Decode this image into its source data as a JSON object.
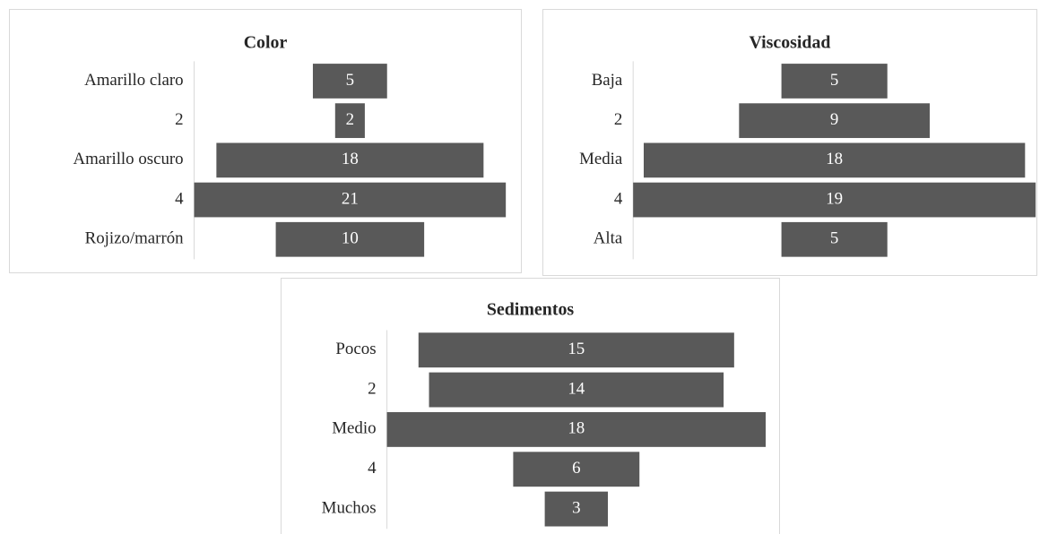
{
  "chart_data": [
    {
      "type": "bar",
      "subtype": "funnel",
      "title": "Color",
      "categories": [
        "Amarillo claro",
        "2",
        "Amarillo oscuro",
        "4",
        "Rojizo/marrón"
      ],
      "values": [
        5,
        2,
        18,
        21,
        10
      ],
      "xlabel": "",
      "ylabel": "",
      "grid": false,
      "bar_color": "#595959",
      "label_color": "#ffffff"
    },
    {
      "type": "bar",
      "subtype": "funnel",
      "title": "Viscosidad",
      "categories": [
        "Baja",
        "2",
        "Media",
        "4",
        "Alta"
      ],
      "values": [
        5,
        9,
        18,
        19,
        5
      ],
      "xlabel": "",
      "ylabel": "",
      "grid": false,
      "bar_color": "#595959",
      "label_color": "#ffffff"
    },
    {
      "type": "bar",
      "subtype": "funnel",
      "title": "Sedimentos",
      "categories": [
        "Pocos",
        "2",
        "Medio",
        "4",
        "Muchos"
      ],
      "values": [
        15,
        14,
        18,
        6,
        3
      ],
      "xlabel": "",
      "ylabel": "",
      "grid": false,
      "bar_color": "#595959",
      "label_color": "#ffffff"
    }
  ]
}
